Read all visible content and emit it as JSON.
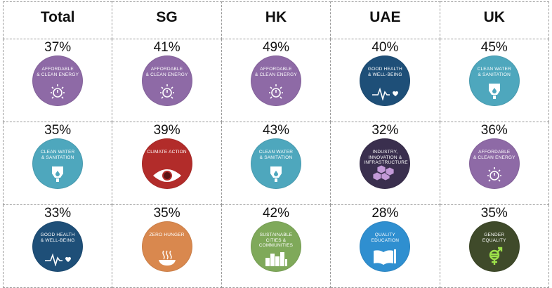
{
  "columns": [
    "Total",
    "SG",
    "HK",
    "UAE",
    "UK"
  ],
  "rows": [
    [
      {
        "pct": "37%",
        "label": "AFFORDABLE\n& CLEAN ENERGY",
        "icon": "power-sun-icon",
        "color": "#8e6aa6"
      },
      {
        "pct": "41%",
        "label": "AFFORDABLE\n& CLEAN ENERGY",
        "icon": "power-sun-icon",
        "color": "#8e6aa6"
      },
      {
        "pct": "49%",
        "label": "AFFORDABLE\n& CLEAN ENERGY",
        "icon": "power-sun-icon",
        "color": "#8e6aa6"
      },
      {
        "pct": "40%",
        "label": "GOOD HEALTH\n& WELL-BEING",
        "icon": "heartbeat-icon",
        "color": "#1e4f78"
      },
      {
        "pct": "45%",
        "label": "CLEAN WATER\n& SANITATION",
        "icon": "water-drop-icon",
        "color": "#4ea7bd"
      }
    ],
    [
      {
        "pct": "35%",
        "label": "CLEAN WATER\n& SANITATION",
        "icon": "water-drop-icon",
        "color": "#4ea7bd"
      },
      {
        "pct": "39%",
        "label": "CLIMATE ACTION",
        "icon": "eye-globe-icon",
        "color": "#b22c2a"
      },
      {
        "pct": "43%",
        "label": "CLEAN WATER\n& SANITATION",
        "icon": "water-drop-icon",
        "color": "#4ea7bd"
      },
      {
        "pct": "32%",
        "label": "INDUSTRY,\nINNOVATION &\nINFRASTRUCTURE",
        "icon": "cubes-icon",
        "color": "#3a2f4e"
      },
      {
        "pct": "36%",
        "label": "AFFORDABLE\n& CLEAN ENERGY",
        "icon": "power-sun-icon",
        "color": "#8e6aa6"
      }
    ],
    [
      {
        "pct": "33%",
        "label": "GOOD HEALTH\n& WELL-BEING",
        "icon": "heartbeat-icon",
        "color": "#1e4f78"
      },
      {
        "pct": "35%",
        "label": "ZERO HUNGER",
        "icon": "bowl-icon",
        "color": "#d9884e"
      },
      {
        "pct": "42%",
        "label": "SUSTAINABLE\nCITIES &\nCOMMUNITIES",
        "icon": "city-icon",
        "color": "#7fa95a"
      },
      {
        "pct": "28%",
        "label": "QUALITY\nEDUCATION",
        "icon": "book-icon",
        "color": "#2f8fd0"
      },
      {
        "pct": "35%",
        "label": "GENDER\nEQUALITY",
        "icon": "gender-icon",
        "color": "#3f4a2a"
      }
    ]
  ]
}
